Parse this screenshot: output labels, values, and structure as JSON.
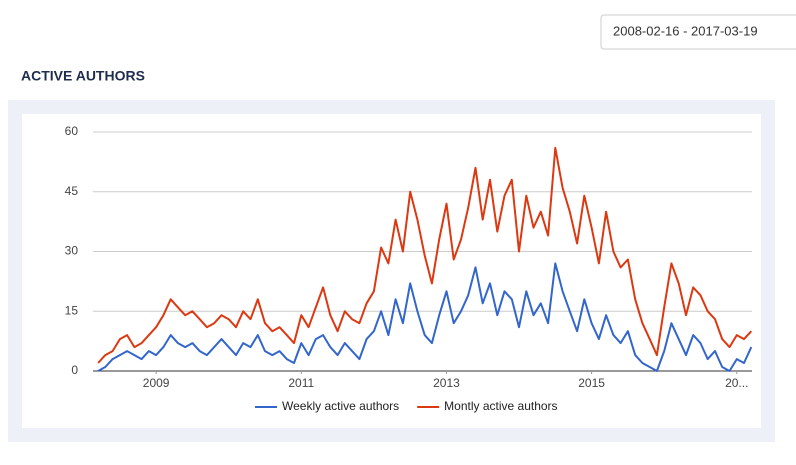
{
  "date_range": "2008-02-16 - 2017-03-19",
  "chart_data": {
    "type": "line",
    "title": "ACTIVE AUTHORS",
    "x": [
      2008.2,
      2008.3,
      2008.4,
      2008.5,
      2008.6,
      2008.7,
      2008.8,
      2008.9,
      2009.0,
      2009.1,
      2009.2,
      2009.3,
      2009.4,
      2009.5,
      2009.6,
      2009.7,
      2009.8,
      2009.9,
      2010.0,
      2010.1,
      2010.2,
      2010.3,
      2010.4,
      2010.5,
      2010.6,
      2010.7,
      2010.8,
      2010.9,
      2011.0,
      2011.1,
      2011.2,
      2011.3,
      2011.4,
      2011.5,
      2011.6,
      2011.7,
      2011.8,
      2011.9,
      2012.0,
      2012.1,
      2012.2,
      2012.3,
      2012.4,
      2012.5,
      2012.6,
      2012.7,
      2012.8,
      2012.9,
      2013.0,
      2013.1,
      2013.2,
      2013.3,
      2013.4,
      2013.5,
      2013.6,
      2013.7,
      2013.8,
      2013.9,
      2014.0,
      2014.1,
      2014.2,
      2014.3,
      2014.4,
      2014.5,
      2014.6,
      2014.7,
      2014.8,
      2014.9,
      2015.0,
      2015.1,
      2015.2,
      2015.3,
      2015.4,
      2015.5,
      2015.6,
      2015.7,
      2015.8,
      2015.9,
      2016.0,
      2016.1,
      2016.2,
      2016.3,
      2016.4,
      2016.5,
      2016.6,
      2016.7,
      2016.8,
      2016.9,
      2017.0,
      2017.1,
      2017.2
    ],
    "series": [
      {
        "name": "Weekly active authors",
        "color": "#3366cc",
        "values": [
          0,
          1,
          3,
          4,
          5,
          4,
          3,
          5,
          4,
          6,
          9,
          7,
          6,
          7,
          5,
          4,
          6,
          8,
          6,
          4,
          7,
          6,
          9,
          5,
          4,
          5,
          3,
          2,
          7,
          4,
          8,
          9,
          6,
          4,
          7,
          5,
          3,
          8,
          10,
          15,
          9,
          18,
          12,
          22,
          15,
          9,
          7,
          14,
          20,
          12,
          15,
          19,
          26,
          17,
          22,
          14,
          20,
          18,
          11,
          20,
          14,
          17,
          12,
          27,
          20,
          15,
          10,
          18,
          12,
          8,
          14,
          9,
          7,
          10,
          4,
          2,
          1,
          0,
          5,
          12,
          8,
          4,
          9,
          7,
          3,
          5,
          1,
          0,
          3,
          2,
          6
        ]
      },
      {
        "name": "Montly active authors",
        "color": "#dc3912",
        "values": [
          2,
          4,
          5,
          8,
          9,
          6,
          7,
          9,
          11,
          14,
          18,
          16,
          14,
          15,
          13,
          11,
          12,
          14,
          13,
          11,
          15,
          13,
          18,
          12,
          10,
          11,
          9,
          7,
          14,
          11,
          16,
          21,
          14,
          10,
          15,
          13,
          12,
          17,
          20,
          31,
          27,
          38,
          30,
          45,
          38,
          29,
          22,
          33,
          42,
          28,
          33,
          41,
          51,
          38,
          48,
          35,
          44,
          48,
          30,
          44,
          36,
          40,
          34,
          56,
          46,
          40,
          32,
          44,
          36,
          27,
          40,
          30,
          26,
          28,
          18,
          12,
          8,
          4,
          16,
          27,
          22,
          14,
          21,
          19,
          15,
          13,
          8,
          6,
          9,
          8,
          10
        ]
      }
    ],
    "xlim": [
      2008.13,
      2017.21
    ],
    "xticks": [
      2009,
      2011,
      2013,
      2015,
      {
        "value": 2017,
        "label": "20..."
      }
    ],
    "ylim": [
      0,
      60
    ],
    "yticks": [
      0,
      15,
      30,
      45,
      60
    ],
    "grid": true,
    "legend": "bottom"
  }
}
